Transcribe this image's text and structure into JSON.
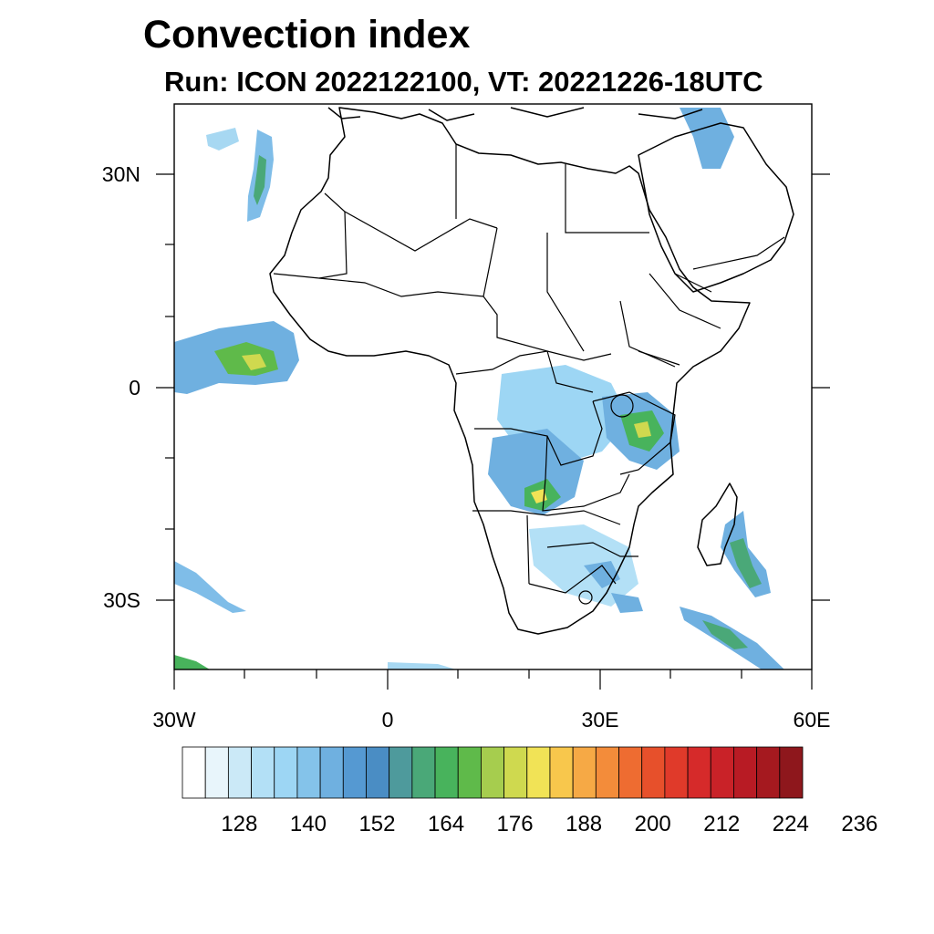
{
  "title": "Convection index",
  "subtitle": "Run: ICON 2022122100,  VT: 20221226-18UTC",
  "map": {
    "lon_range": [
      -30,
      60
    ],
    "lat_range": [
      -40,
      40
    ],
    "y_tick_labels": [
      "30N",
      "0",
      "30S"
    ],
    "x_tick_labels": [
      "30W",
      "0",
      "30E",
      "60E"
    ]
  },
  "colorbar": {
    "colors": [
      "#ffffff",
      "#e8f5fb",
      "#cbe9f7",
      "#b3e0f6",
      "#9dd6f4",
      "#84c3ea",
      "#6fb0e0",
      "#5599d2",
      "#4a8dc4",
      "#4e9a9c",
      "#4aa878",
      "#48b35c",
      "#5fba4a",
      "#a6cd4e",
      "#cfd94f",
      "#f1e356",
      "#f8c74c",
      "#f6a945",
      "#f38c3a",
      "#ee6c31",
      "#e7502b",
      "#e03a2a",
      "#d62a2a",
      "#c92228",
      "#b81b24",
      "#a5191f",
      "#8e171c"
    ],
    "tick_labels": [
      "128",
      "140",
      "152",
      "164",
      "176",
      "188",
      "200",
      "212",
      "224",
      "236"
    ]
  }
}
